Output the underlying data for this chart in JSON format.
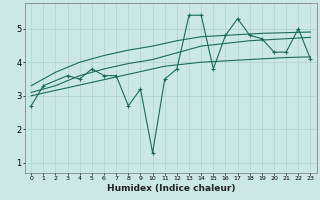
{
  "xlabel": "Humidex (Indice chaleur)",
  "x": [
    0,
    1,
    2,
    3,
    4,
    5,
    6,
    7,
    8,
    9,
    10,
    11,
    12,
    13,
    14,
    15,
    16,
    17,
    18,
    19,
    20,
    21,
    22,
    23
  ],
  "line_jagged": [
    2.7,
    3.3,
    null,
    3.6,
    3.5,
    3.8,
    3.6,
    3.6,
    2.7,
    3.2,
    1.3,
    3.5,
    3.8,
    5.4,
    5.4,
    3.8,
    4.8,
    5.3,
    4.8,
    4.7,
    4.3,
    4.3,
    5.0,
    4.1
  ],
  "line_trend1": [
    3.0,
    3.08,
    3.16,
    3.24,
    3.32,
    3.4,
    3.48,
    3.56,
    3.64,
    3.72,
    3.8,
    3.88,
    3.92,
    3.96,
    4.0,
    4.02,
    4.04,
    4.06,
    4.08,
    4.1,
    4.12,
    4.14,
    4.15,
    4.16
  ],
  "line_trend2": [
    3.1,
    3.2,
    3.3,
    3.45,
    3.6,
    3.7,
    3.8,
    3.88,
    3.96,
    4.02,
    4.08,
    4.18,
    4.28,
    4.38,
    4.48,
    4.52,
    4.56,
    4.6,
    4.64,
    4.66,
    4.68,
    4.7,
    4.72,
    4.74
  ],
  "line_trend3": [
    3.3,
    3.5,
    3.7,
    3.85,
    4.0,
    4.1,
    4.2,
    4.28,
    4.36,
    4.42,
    4.48,
    4.56,
    4.64,
    4.7,
    4.76,
    4.78,
    4.8,
    4.82,
    4.84,
    4.86,
    4.87,
    4.88,
    4.89,
    4.9
  ],
  "bg_color": "#cce8e4",
  "grid_color": "#aad4cc",
  "line_color": "#1a6b5a",
  "ylim": [
    0.7,
    5.75
  ],
  "yticks": [
    1,
    2,
    3,
    4,
    5
  ],
  "xlim": [
    -0.5,
    23.5
  ],
  "xtick_fontsize": 4.5,
  "ytick_fontsize": 6.0,
  "xlabel_fontsize": 6.5
}
